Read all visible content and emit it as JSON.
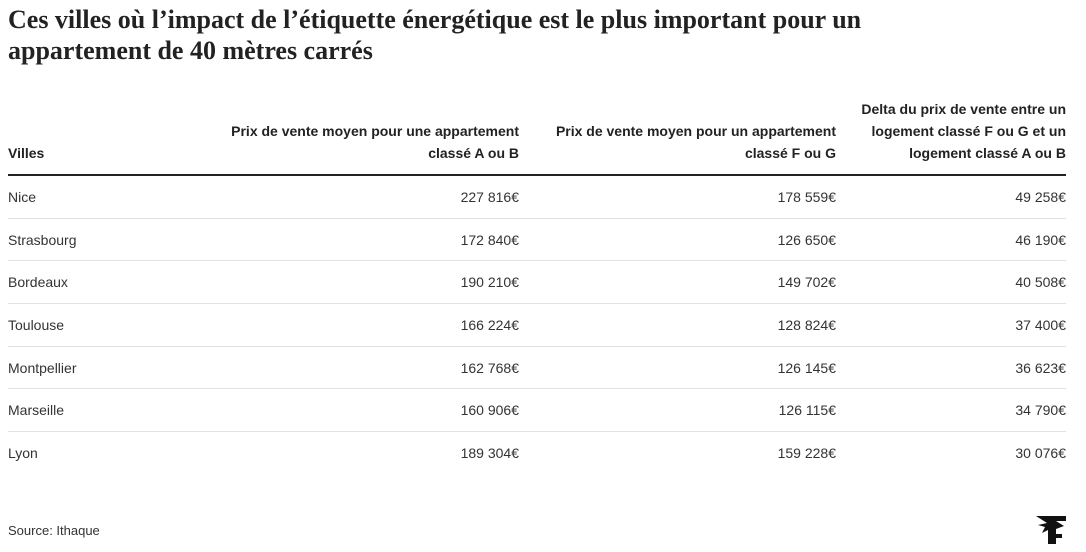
{
  "title": "Ces villes où l’impact de l’étiquette énergétique est le plus important pour un appartement de 40 mètres carrés",
  "source": "Source: Ithaque",
  "logo": {
    "icon": "le-figaro-logo",
    "color": "#111111"
  },
  "chart_data": {
    "type": "table",
    "title": "Ces villes où l’impact de l’étiquette énergétique est le plus important pour un appartement de 40 mètres carrés",
    "columns": [
      "Villes",
      "Prix de vente moyen pour une appartement classé A ou B",
      "Prix de vente moyen pour un appartement classé F ou G",
      "Delta du prix de vente entre un logement classé F ou G et un logement classé A ou B"
    ],
    "rows": [
      [
        "Nice",
        "227 816€",
        "178 559€",
        "49 258€"
      ],
      [
        "Strasbourg",
        "172 840€",
        "126 650€",
        "46 190€"
      ],
      [
        "Bordeaux",
        "190 210€",
        "149 702€",
        "40 508€"
      ],
      [
        "Toulouse",
        "166 224€",
        "128 824€",
        "37 400€"
      ],
      [
        "Montpellier",
        "162 768€",
        "126 145€",
        "36 623€"
      ],
      [
        "Marseille",
        "160 906€",
        "126 115€",
        "34 790€"
      ],
      [
        "Lyon",
        "189 304€",
        "159 228€",
        "30 076€"
      ]
    ],
    "values": {
      "cities": [
        "Nice",
        "Strasbourg",
        "Bordeaux",
        "Toulouse",
        "Montpellier",
        "Marseille",
        "Lyon"
      ],
      "price_a_or_b": [
        227816,
        172840,
        190210,
        166224,
        162768,
        160906,
        189304
      ],
      "price_f_or_g": [
        178559,
        126650,
        149702,
        128824,
        126145,
        126115,
        159228
      ],
      "delta": [
        49258,
        46190,
        40508,
        37400,
        36623,
        34790,
        30076
      ]
    }
  }
}
